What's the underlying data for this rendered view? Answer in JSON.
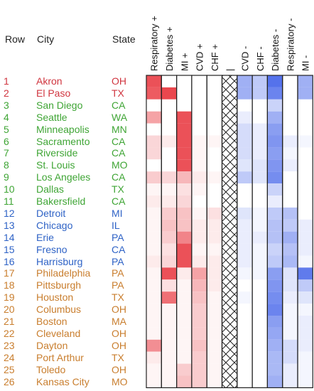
{
  "chart_data": {
    "type": "heatmap",
    "headers": {
      "row": "Row",
      "city": "City",
      "state": "State"
    },
    "columns": [
      "Respiratory +",
      "Diabetes +",
      "MI +",
      "CVD +",
      "CHF +",
      "|",
      "CVD -",
      "CHF -",
      "Diabetes -",
      "Respiratory -",
      "MI -"
    ],
    "group_colors": {
      "1": "#d0353f",
      "2": "#3fa535",
      "3": "#2f63c6",
      "4": "#c97e2e"
    },
    "positive_color": "#e8323a",
    "negative_color": "#2b4fe6",
    "rows": [
      {
        "row": "1",
        "city": "Akron",
        "state": "OH",
        "group": 1,
        "values": [
          0.85,
          0.0,
          0.0,
          0.0,
          0.0,
          null,
          -0.45,
          -0.3,
          -0.8,
          0.0,
          -0.45
        ]
      },
      {
        "row": "2",
        "city": "El Paso",
        "state": "TX",
        "group": 1,
        "values": [
          0.8,
          0.9,
          0.0,
          0.0,
          0.0,
          null,
          -0.45,
          -0.3,
          -0.7,
          0.0,
          -0.45
        ]
      },
      {
        "row": "3",
        "city": "San Diego",
        "state": "CA",
        "group": 2,
        "values": [
          0.0,
          0.0,
          0.0,
          0.0,
          0.0,
          null,
          0.0,
          0.0,
          -0.25,
          0.0,
          0.0
        ]
      },
      {
        "row": "4",
        "city": "Seattle",
        "state": "WA",
        "group": 2,
        "values": [
          0.45,
          0.0,
          0.85,
          0.0,
          0.0,
          null,
          -0.1,
          0.0,
          -0.45,
          0.0,
          0.0
        ]
      },
      {
        "row": "5",
        "city": "Minneapolis",
        "state": "MN",
        "group": 2,
        "values": [
          0.0,
          0.0,
          0.85,
          0.0,
          0.0,
          null,
          -0.2,
          -0.1,
          -0.55,
          0.0,
          0.0
        ]
      },
      {
        "row": "6",
        "city": "Sacramento",
        "state": "CA",
        "group": 2,
        "values": [
          0.2,
          0.1,
          0.85,
          0.05,
          0.05,
          null,
          -0.2,
          -0.1,
          -0.6,
          -0.1,
          -0.05
        ]
      },
      {
        "row": "7",
        "city": "Riverside",
        "state": "CA",
        "group": 2,
        "values": [
          0.2,
          0.0,
          0.85,
          0.05,
          0.0,
          null,
          -0.2,
          -0.1,
          -0.55,
          -0.05,
          0.0
        ]
      },
      {
        "row": "8",
        "city": "St. Louis",
        "state": "MO",
        "group": 2,
        "values": [
          0.0,
          0.0,
          0.85,
          0.05,
          0.0,
          null,
          -0.15,
          -0.15,
          -0.6,
          -0.1,
          0.0
        ]
      },
      {
        "row": "9",
        "city": "Los Angeles",
        "state": "CA",
        "group": 2,
        "values": [
          0.25,
          0.2,
          0.35,
          0.1,
          0.05,
          null,
          -0.3,
          -0.15,
          -0.65,
          0.0,
          0.0
        ]
      },
      {
        "row": "10",
        "city": "Dallas",
        "state": "TX",
        "group": 2,
        "values": [
          0.05,
          0.05,
          0.15,
          0.05,
          0.0,
          null,
          0.0,
          0.0,
          -0.25,
          0.0,
          0.0
        ]
      },
      {
        "row": "11",
        "city": "Bakersfield",
        "state": "CA",
        "group": 2,
        "values": [
          0.1,
          0.1,
          0.2,
          0.0,
          0.0,
          null,
          0.0,
          0.0,
          -0.1,
          0.0,
          0.0
        ]
      },
      {
        "row": "12",
        "city": "Detroit",
        "state": "MI",
        "group": 3,
        "values": [
          0.05,
          0.25,
          0.3,
          0.05,
          0.15,
          null,
          -0.15,
          -0.05,
          -0.3,
          -0.35,
          0.0
        ]
      },
      {
        "row": "13",
        "city": "Chicago",
        "state": "IL",
        "group": 3,
        "values": [
          0.05,
          0.3,
          0.3,
          0.1,
          0.1,
          null,
          -0.1,
          -0.05,
          -0.35,
          -0.3,
          -0.1
        ]
      },
      {
        "row": "14",
        "city": "Erie",
        "state": "PA",
        "group": 3,
        "values": [
          0.05,
          0.25,
          0.6,
          0.1,
          0.1,
          null,
          -0.1,
          -0.1,
          -0.35,
          -0.45,
          -0.1
        ]
      },
      {
        "row": "15",
        "city": "Fresno",
        "state": "CA",
        "group": 3,
        "values": [
          0.05,
          0.15,
          0.85,
          0.05,
          0.05,
          null,
          -0.1,
          -0.05,
          -0.25,
          -0.35,
          -0.1
        ]
      },
      {
        "row": "16",
        "city": "Harrisburg",
        "state": "PA",
        "group": 3,
        "values": [
          0.1,
          0.2,
          0.85,
          0.1,
          0.1,
          null,
          -0.1,
          -0.05,
          -0.3,
          -0.4,
          -0.05
        ]
      },
      {
        "row": "17",
        "city": "Philadelphia",
        "state": "PA",
        "group": 4,
        "values": [
          0.05,
          0.85,
          0.1,
          0.45,
          0.1,
          null,
          -0.05,
          -0.05,
          -0.55,
          -0.15,
          -0.75
        ]
      },
      {
        "row": "18",
        "city": "Pittsburgh",
        "state": "PA",
        "group": 4,
        "values": [
          0.05,
          0.15,
          0.05,
          0.35,
          0.1,
          null,
          0.0,
          0.0,
          -0.6,
          -0.15,
          -0.3
        ]
      },
      {
        "row": "19",
        "city": "Houston",
        "state": "TX",
        "group": 4,
        "values": [
          0.05,
          0.7,
          0.05,
          0.3,
          0.05,
          null,
          -0.05,
          0.0,
          -0.65,
          -0.1,
          -0.15
        ]
      },
      {
        "row": "20",
        "city": "Columbus",
        "state": "OH",
        "group": 4,
        "values": [
          0.05,
          0.05,
          0.05,
          0.25,
          0.05,
          null,
          0.0,
          0.0,
          -0.7,
          -0.05,
          -0.05
        ]
      },
      {
        "row": "21",
        "city": "Boston",
        "state": "MA",
        "group": 4,
        "values": [
          0.05,
          0.05,
          0.05,
          0.25,
          0.05,
          null,
          0.0,
          0.0,
          -0.55,
          -0.05,
          -0.1
        ]
      },
      {
        "row": "22",
        "city": "Cleveland",
        "state": "OH",
        "group": 4,
        "values": [
          0.05,
          0.05,
          0.05,
          0.25,
          0.05,
          null,
          0.0,
          0.0,
          -0.5,
          -0.05,
          -0.1
        ]
      },
      {
        "row": "23",
        "city": "Dayton",
        "state": "OH",
        "group": 4,
        "values": [
          0.55,
          0.05,
          0.05,
          0.3,
          0.05,
          null,
          0.0,
          0.0,
          -0.45,
          -0.2,
          -0.1
        ]
      },
      {
        "row": "24",
        "city": "Port Arthur",
        "state": "TX",
        "group": 4,
        "values": [
          0.1,
          0.05,
          0.05,
          0.25,
          0.05,
          null,
          0.0,
          0.0,
          -0.4,
          -0.2,
          -0.05
        ]
      },
      {
        "row": "25",
        "city": "Toledo",
        "state": "OH",
        "group": 4,
        "values": [
          0.05,
          0.05,
          0.25,
          0.25,
          0.05,
          null,
          0.0,
          0.0,
          -0.4,
          -0.1,
          -0.05
        ]
      },
      {
        "row": "26",
        "city": "Kansas City",
        "state": "MO",
        "group": 4,
        "values": [
          0.05,
          0.05,
          0.3,
          0.25,
          0.05,
          null,
          0.0,
          0.0,
          -0.45,
          -0.1,
          -0.05
        ]
      }
    ]
  }
}
